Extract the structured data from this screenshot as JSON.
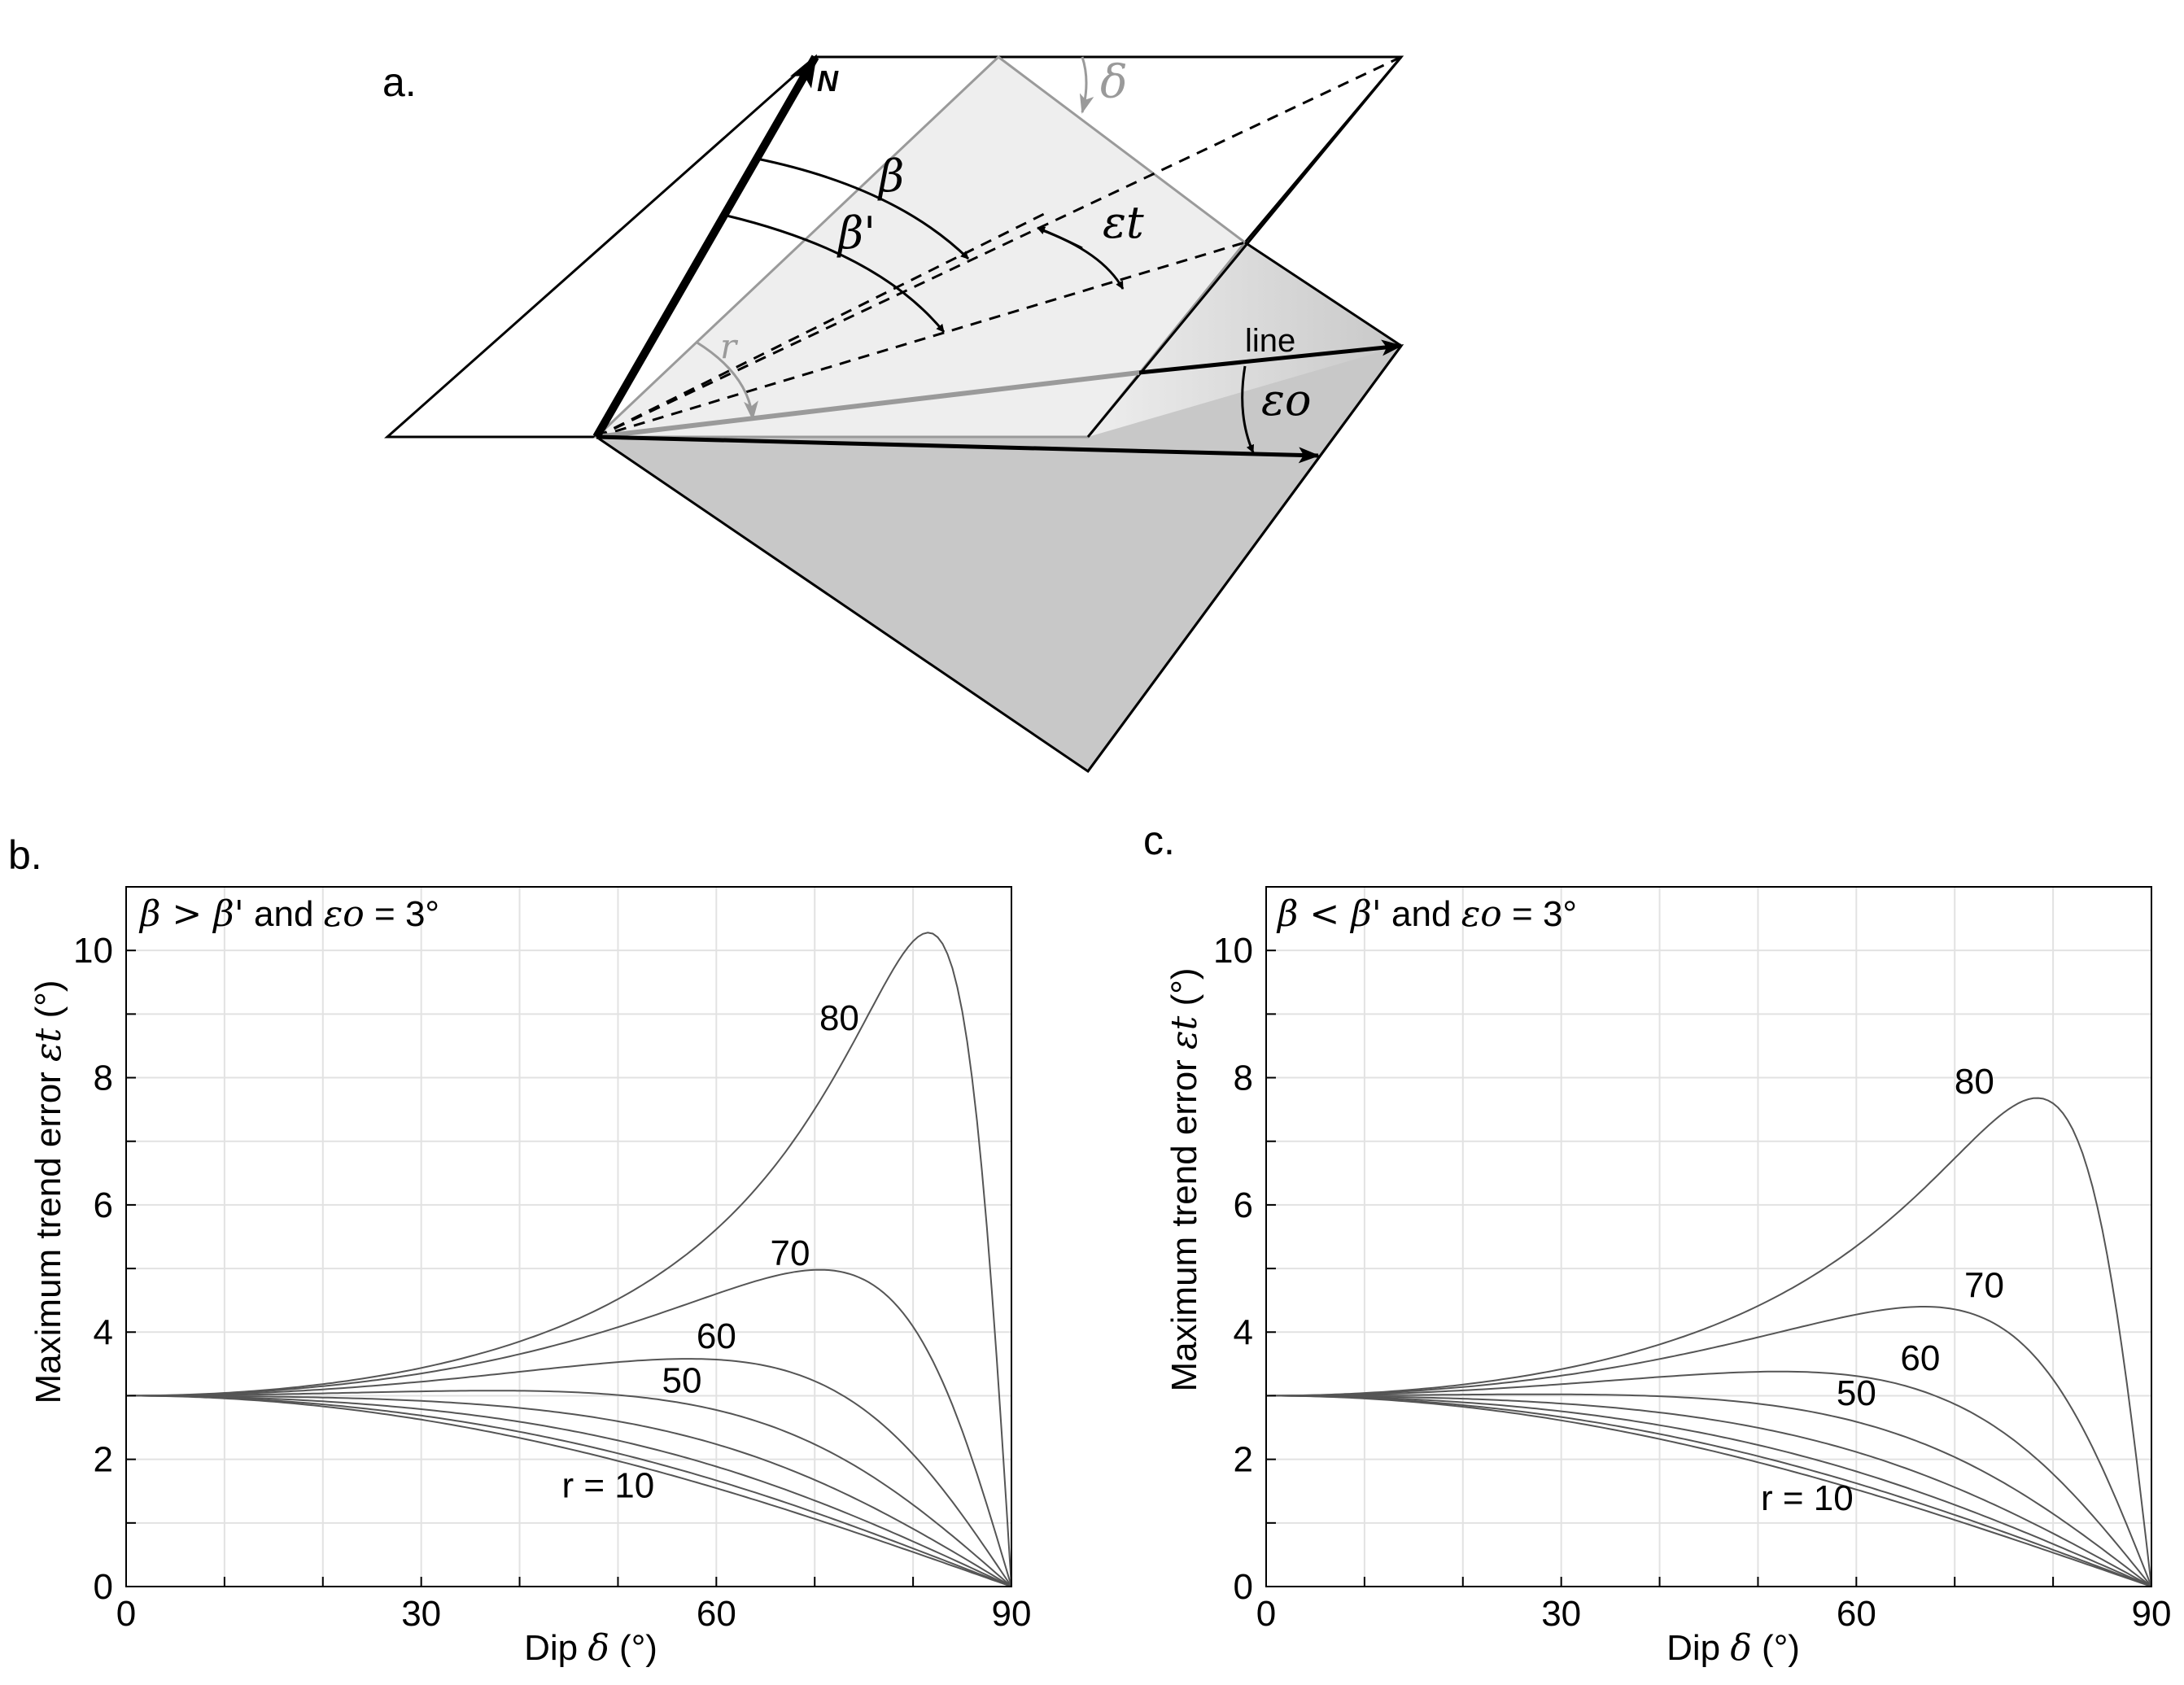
{
  "panels": {
    "a": {
      "label": "a.",
      "north_label": "N",
      "line_label": "line",
      "symbols": {
        "beta": "β",
        "beta_prime": "β'",
        "epsilon_t": "εt",
        "epsilon_o": "εo",
        "delta": "δ",
        "r": "r"
      }
    },
    "b": {
      "label": "b."
    },
    "c": {
      "label": "c."
    }
  },
  "colors": {
    "curve": "#555555",
    "grid": "#e2e2e2",
    "axis": "#000000",
    "upper_plane": "#ffffff",
    "middle_plane": "#eeeeee",
    "lower_plane": "#c8c8c8",
    "gray_annotation": "#9a9a9a"
  },
  "chart_data": [
    {
      "type": "line",
      "panel": "b",
      "condition_prefix": "β > β'",
      "condition_mid": " and ",
      "condition_eps": "εo",
      "condition_suffix": " = 3°",
      "xlabel_prefix": "Dip ",
      "xlabel_symbol": "δ",
      "xlabel_suffix": " (°)",
      "ylabel_prefix": "Maximum trend error ",
      "ylabel_symbol": "εt",
      "ylabel_suffix": " (°)",
      "xlim": [
        0,
        90
      ],
      "ylim": [
        0,
        11
      ],
      "x_ticks": [
        0,
        30,
        60,
        90
      ],
      "y_ticks": [
        0,
        2,
        4,
        6,
        8,
        10
      ],
      "grid": true,
      "eps_o": 3,
      "series": [
        {
          "name": "r = 10",
          "r": 10
        },
        {
          "name": "",
          "r": 20
        },
        {
          "name": "",
          "r": 30
        },
        {
          "name": "",
          "r": 40
        },
        {
          "name": "50",
          "r": 50
        },
        {
          "name": "60",
          "r": 60
        },
        {
          "name": "70",
          "r": 70
        },
        {
          "name": "80",
          "r": 80
        }
      ],
      "annotations": [
        {
          "text": "80",
          "x": 72.5,
          "y": 8.75
        },
        {
          "text": "70",
          "x": 67.5,
          "y": 5.05
        },
        {
          "text": "60",
          "x": 60,
          "y": 3.75
        },
        {
          "text": "50",
          "x": 56.5,
          "y": 3.05
        },
        {
          "text": "r = 10",
          "x": 49,
          "y": 1.4
        }
      ],
      "peaks": {
        "80": [
          82,
          10.28
        ],
        "70": [
          71,
          4.98
        ],
        "60": [
          57,
          3.58
        ],
        "50": [
          43,
          3.08
        ]
      }
    },
    {
      "type": "line",
      "panel": "c",
      "condition_prefix": "β < β'",
      "condition_mid": " and ",
      "condition_eps": "εo",
      "condition_suffix": " = 3°",
      "xlabel_prefix": "Dip ",
      "xlabel_symbol": "δ",
      "xlabel_suffix": " (°)",
      "ylabel_prefix": "Maximum trend error ",
      "ylabel_symbol": "εt",
      "ylabel_suffix": " (°)",
      "xlim": [
        0,
        90
      ],
      "ylim": [
        0,
        11
      ],
      "x_ticks": [
        0,
        30,
        60,
        90
      ],
      "y_ticks": [
        0,
        2,
        4,
        6,
        8,
        10
      ],
      "grid": true,
      "eps_o": 3,
      "series": [
        {
          "name": "r = 10",
          "r": 10
        },
        {
          "name": "",
          "r": 20
        },
        {
          "name": "",
          "r": 30
        },
        {
          "name": "",
          "r": 40
        },
        {
          "name": "50",
          "r": 50
        },
        {
          "name": "60",
          "r": 60
        },
        {
          "name": "70",
          "r": 70
        },
        {
          "name": "80",
          "r": 80
        }
      ],
      "annotations": [
        {
          "text": "80",
          "x": 72,
          "y": 7.75
        },
        {
          "text": "70",
          "x": 73,
          "y": 4.55
        },
        {
          "text": "60",
          "x": 66.5,
          "y": 3.4
        },
        {
          "text": "50",
          "x": 60,
          "y": 2.85
        },
        {
          "text": "r = 10",
          "x": 55,
          "y": 1.2
        }
      ],
      "peaks": {
        "80": [
          78,
          7.68
        ],
        "70": [
          66,
          4.4
        ],
        "60": [
          53,
          3.38
        ]
      }
    }
  ]
}
